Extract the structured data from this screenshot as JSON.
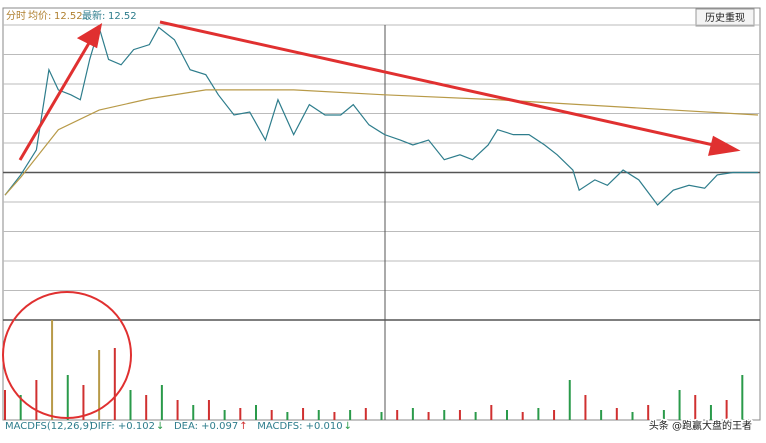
{
  "header": {
    "mode": "分时",
    "avg_label": "均价:",
    "avg_value": 12.52,
    "last_label": "最新:",
    "last_value": 12.52,
    "button": "历史重现"
  },
  "indicator": {
    "name": "MACDFS(12,26,9)",
    "items": [
      {
        "label": "DIFF: +0.102",
        "arrow": "↓",
        "arrow_color": "#2a9a4a"
      },
      {
        "label": "DEA: +0.097",
        "arrow": "↑",
        "arrow_color": "#d03030"
      },
      {
        "label": "MACDFS: +0.010",
        "arrow": "↓",
        "arrow_color": "#2a9a4a"
      }
    ]
  },
  "watermark": "头条 @跑赢大盘的王者",
  "chart_data": [
    {
      "type": "line",
      "xlim": [
        0,
        240
      ],
      "ylim": [
        -3,
        3
      ],
      "series": [
        {
          "color": "#2e7d8c",
          "x": [
            0,
            5,
            10,
            14,
            17,
            21,
            24,
            27,
            30,
            33,
            37,
            41,
            46,
            49,
            54,
            59,
            64,
            68,
            73,
            78,
            83,
            87,
            92,
            97,
            102,
            107,
            111,
            116,
            121,
            126,
            130,
            135,
            140,
            145,
            149,
            154,
            157,
            162,
            167,
            172,
            176,
            181,
            183,
            188,
            192,
            197,
            202,
            208,
            213,
            218,
            223,
            227,
            232,
            240
          ],
          "values": [
            -0.46,
            -0.05,
            0.46,
            2.09,
            1.68,
            1.58,
            1.48,
            2.3,
            2.95,
            2.3,
            2.19,
            2.5,
            2.6,
            2.95,
            2.7,
            2.09,
            1.99,
            1.58,
            1.17,
            1.23,
            0.66,
            1.48,
            0.77,
            1.38,
            1.17,
            1.17,
            1.38,
            0.97,
            0.77,
            0.66,
            0.56,
            0.66,
            0.26,
            0.36,
            0.26,
            0.56,
            0.87,
            0.77,
            0.77,
            0.56,
            0.36,
            0.05,
            -0.36,
            -0.15,
            -0.26,
            0.05,
            -0.15,
            -0.66,
            -0.36,
            -0.26,
            -0.32,
            -0.05,
            0,
            0
          ]
        },
        {
          "color": "#b89a48",
          "x": [
            0,
            5,
            17,
            30,
            46,
            64,
            92,
            121,
            157,
            197,
            240
          ],
          "values": [
            -0.46,
            -0.1,
            0.87,
            1.27,
            1.5,
            1.68,
            1.68,
            1.58,
            1.48,
            1.33,
            1.17
          ]
        }
      ]
    },
    {
      "type": "bar",
      "xlim": [
        0,
        240
      ],
      "ylim": [
        0,
        100
      ],
      "x": [
        0,
        5,
        10,
        15,
        20,
        25,
        30,
        35,
        40,
        45,
        50,
        55,
        60,
        65,
        70,
        75,
        80,
        85,
        90,
        95,
        100,
        105,
        110,
        115,
        120,
        125,
        130,
        135,
        140,
        145,
        150,
        155,
        160,
        165,
        170,
        175,
        180,
        185,
        190,
        195,
        200,
        205,
        210,
        215,
        220,
        225,
        230,
        235
      ],
      "values": [
        30,
        25,
        40,
        100,
        45,
        35,
        70,
        72,
        30,
        25,
        35,
        20,
        15,
        20,
        10,
        12,
        15,
        10,
        8,
        12,
        10,
        8,
        10,
        12,
        8,
        10,
        12,
        8,
        10,
        10,
        8,
        15,
        10,
        8,
        12,
        10,
        40,
        25,
        10,
        12,
        8,
        15,
        10,
        30,
        25,
        15,
        20,
        45
      ],
      "colors": [
        "#d03030",
        "#2a9a4a",
        "#d03030",
        "#b89a48",
        "#2a9a4a",
        "#d03030",
        "#b89a48",
        "#d03030",
        "#2a9a4a",
        "#d03030",
        "#2a9a4a",
        "#d03030",
        "#2a9a4a",
        "#d03030",
        "#2a9a4a",
        "#d03030",
        "#2a9a4a",
        "#d03030",
        "#2a9a4a",
        "#d03030",
        "#2a9a4a",
        "#d03030",
        "#2a9a4a",
        "#d03030",
        "#2a9a4a",
        "#d03030",
        "#2a9a4a",
        "#d03030",
        "#2a9a4a",
        "#d03030",
        "#2a9a4a",
        "#d03030",
        "#2a9a4a",
        "#d03030",
        "#2a9a4a",
        "#d03030",
        "#2a9a4a",
        "#d03030",
        "#2a9a4a",
        "#d03030",
        "#2a9a4a",
        "#d03030",
        "#2a9a4a",
        "#2a9a4a",
        "#d03030",
        "#2a9a4a",
        "#d03030",
        "#2a9a4a"
      ]
    }
  ]
}
